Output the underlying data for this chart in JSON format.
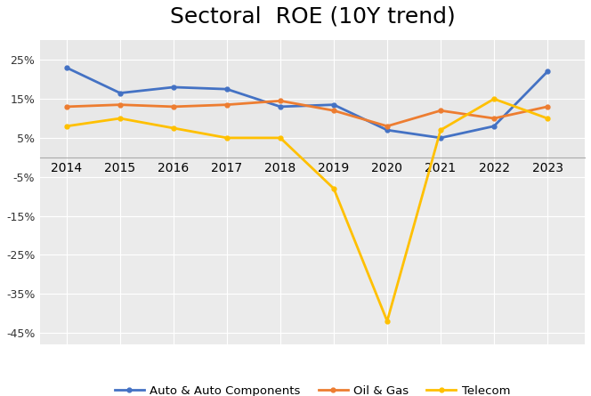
{
  "title": "Sectoral  ROE (10Y trend)",
  "years": [
    2014,
    2015,
    2016,
    2017,
    2018,
    2019,
    2020,
    2021,
    2022,
    2023
  ],
  "auto": [
    0.23,
    0.165,
    0.18,
    0.175,
    0.13,
    0.135,
    0.07,
    0.05,
    0.08,
    0.22
  ],
  "oil_gas": [
    0.13,
    0.135,
    0.13,
    0.135,
    0.145,
    0.12,
    0.08,
    0.12,
    0.1,
    0.13
  ],
  "telecom": [
    0.08,
    0.1,
    0.075,
    0.05,
    0.05,
    -0.08,
    -0.42,
    0.07,
    0.15,
    0.1
  ],
  "auto_color": "#4472C4",
  "oil_color": "#ED7D31",
  "telecom_color": "#FFC000",
  "plot_bg": "#FFFFFF",
  "upper_bg": "#E8E8E8",
  "lower_bg": "#EBEBEB",
  "yticks": [
    -0.45,
    -0.35,
    -0.25,
    -0.15,
    -0.05,
    0.05,
    0.15,
    0.25
  ],
  "ytick_labels": [
    "-45%",
    "-35%",
    "-25%",
    "-15%",
    "-5%",
    "5%",
    "15%",
    "25%"
  ],
  "ylim": [
    -0.48,
    0.3
  ],
  "xlim": [
    2013.5,
    2023.7
  ],
  "legend_labels": [
    "Auto & Auto Components",
    "Oil & Gas",
    "Telecom"
  ],
  "linewidth": 2.0,
  "title_fontsize": 18,
  "tick_fontsize": 9
}
